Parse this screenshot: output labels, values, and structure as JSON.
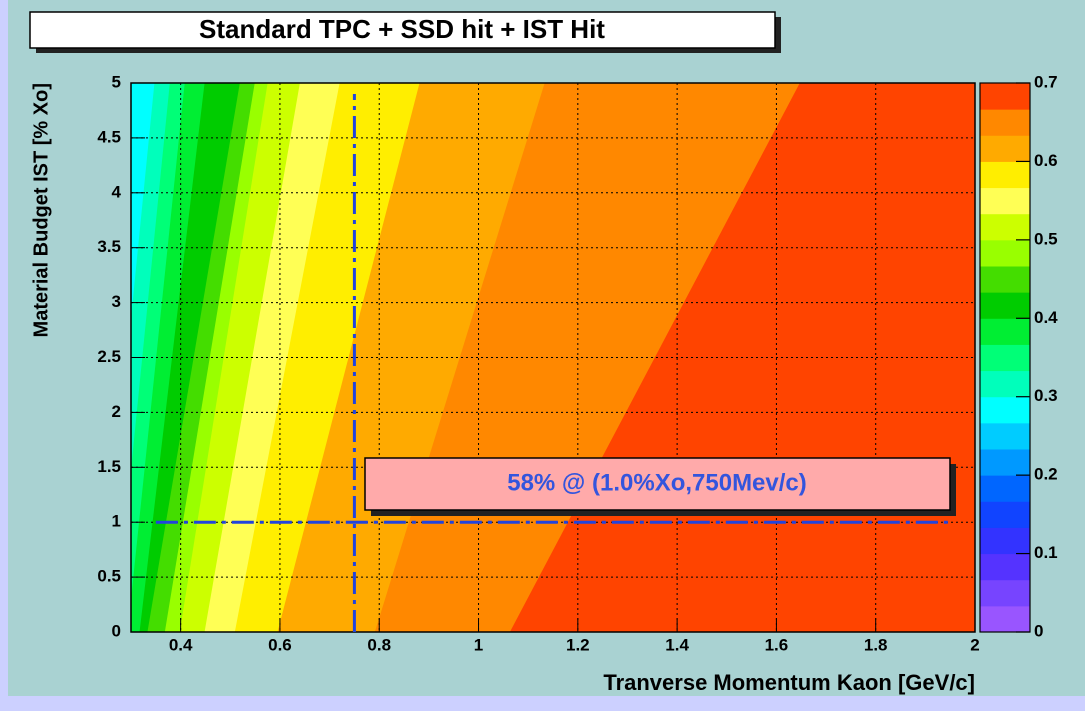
{
  "chart_data": {
    "type": "contour",
    "title": "Standard TPC + SSD hit + IST Hit",
    "xlabel": "Tranverse Momentum Kaon [GeV/c]",
    "ylabel": "Material Budget IST [% Xo]",
    "xlim": [
      0.3,
      2.0
    ],
    "ylim": [
      0,
      5
    ],
    "xticks": [
      0.4,
      0.6,
      0.8,
      1,
      1.2,
      1.4,
      1.6,
      1.8,
      2
    ],
    "yticks": [
      0,
      0.5,
      1,
      1.5,
      2,
      2.5,
      3,
      3.5,
      4,
      4.5,
      5
    ],
    "zlim": [
      0,
      0.7
    ],
    "zticks": [
      0,
      0.1,
      0.2,
      0.3,
      0.4,
      0.5,
      0.6,
      0.7
    ],
    "palette": [
      "#9955ff",
      "#7744ff",
      "#5533ff",
      "#3333ff",
      "#1144ff",
      "#0066ff",
      "#0099ff",
      "#00ccff",
      "#00ffff",
      "#00ffbb",
      "#00ff77",
      "#00ee33",
      "#00cc00",
      "#44dd00",
      "#99ff00",
      "#ccff00",
      "#ffff55",
      "#ffee00",
      "#ffaa00",
      "#ff8800",
      "#ff4400"
    ],
    "grid": true,
    "regions": [
      {
        "color": "#00ffff",
        "left": [
          0.3,
          0.3
        ]
      },
      {
        "color": "#00ffbb",
        "left": [
          0.238,
          0.348
        ]
      },
      {
        "color": "#00ff77",
        "left": [
          0.268,
          0.379
        ]
      },
      {
        "color": "#00ee33",
        "left": [
          0.294,
          0.409
        ]
      },
      {
        "color": "#00cc00",
        "left": [
          0.318,
          0.449
        ]
      },
      {
        "color": "#44dd00",
        "left": [
          0.334,
          0.52
        ]
      },
      {
        "color": "#99ff00",
        "left": [
          0.369,
          0.55
        ]
      },
      {
        "color": "#ccff00",
        "left": [
          0.399,
          0.576
        ]
      },
      {
        "color": "#ffff55",
        "left": [
          0.449,
          0.641
        ]
      },
      {
        "color": "#ffee00",
        "left": [
          0.51,
          0.721
        ]
      },
      {
        "color": "#ffaa00",
        "left": [
          0.596,
          0.882
        ]
      },
      {
        "color": "#ff8800",
        "left": [
          0.792,
          1.134
        ]
      },
      {
        "color": "#ff4400",
        "left": [
          1.064,
          1.648
        ]
      }
    ],
    "vline": {
      "x": 0.75,
      "y": [
        0,
        4.9
      ]
    },
    "hline": {
      "y": 1,
      "x": [
        0.35,
        1.95
      ]
    },
    "annotation": "58% @ (1.0%Xo,750Mev/c)"
  }
}
